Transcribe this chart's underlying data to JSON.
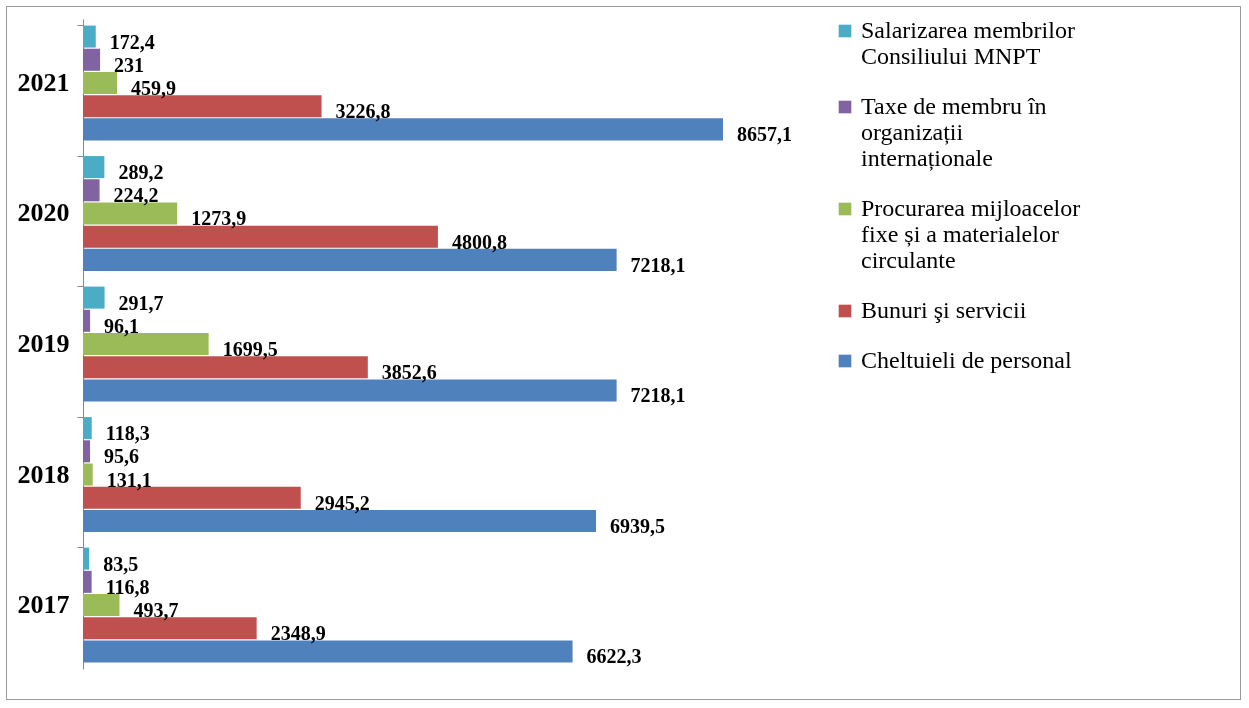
{
  "chart_data": {
    "type": "bar",
    "orientation": "horizontal",
    "categories": [
      "2021",
      "2020",
      "2019",
      "2018",
      "2017"
    ],
    "tick_labels": "y",
    "legend": "right",
    "series": [
      {
        "name": "Salarizarea membrilor Consiliului MNPT",
        "color": "#4bacc6",
        "values": [
          172.4,
          289.2,
          291.7,
          118.3,
          83.5
        ],
        "value_labels": [
          "172,4",
          "289,2",
          "291,7",
          "118,3",
          "83,5"
        ]
      },
      {
        "name": "Taxe de membru în organizații internaționale",
        "color": "#8064a2",
        "values": [
          231,
          224.2,
          96.1,
          95.6,
          116.8
        ],
        "value_labels": [
          "231",
          "224,2",
          "96,1",
          "95,6",
          "116,8"
        ]
      },
      {
        "name": "Procurarea mijloacelor fixe și a materialelor circulante",
        "color": "#9bbb59",
        "values": [
          459.9,
          1273.9,
          1699.5,
          131.1,
          493.7
        ],
        "value_labels": [
          "459,9",
          "1273,9",
          "1699,5",
          "131,1",
          "493,7"
        ]
      },
      {
        "name": "Bunuri şi servicii",
        "color": "#c0504d",
        "values": [
          3226.8,
          4800.8,
          3852.6,
          2945.2,
          2348.9
        ],
        "value_labels": [
          "3226,8",
          "4800,8",
          "3852,6",
          "2945,2",
          "2348,9"
        ]
      },
      {
        "name": "Cheltuieli de personal",
        "color": "#4f81bd",
        "values": [
          8657.1,
          7218.1,
          7218.1,
          6939.5,
          6622.3
        ],
        "value_labels": [
          "8657,1",
          "7218,1",
          "7218,1",
          "6939,5",
          "6622,3"
        ]
      }
    ]
  }
}
